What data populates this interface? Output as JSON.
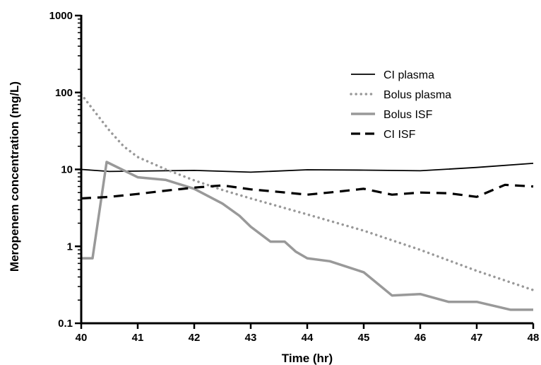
{
  "chart_data": {
    "type": "line",
    "title": "",
    "xlabel": "Time (hr)",
    "ylabel": "Meropenem concentration (mg/L)",
    "xlim": [
      40,
      48
    ],
    "ylim": [
      0.1,
      1000
    ],
    "yscale": "log",
    "x_ticks": [
      "40",
      "41",
      "42",
      "43",
      "44",
      "45",
      "46",
      "47",
      "48"
    ],
    "y_ticks": [
      "0.1",
      "1",
      "10",
      "100",
      "1000"
    ],
    "grid": false,
    "legend_position": "top-right",
    "series": [
      {
        "name": "CI plasma",
        "color": "#000000",
        "style": "solid-thin",
        "points": [
          [
            40,
            10.0
          ],
          [
            40.5,
            9.4
          ],
          [
            41,
            9.5
          ],
          [
            42,
            9.7
          ],
          [
            43,
            9.2
          ],
          [
            44,
            9.9
          ],
          [
            45,
            9.8
          ],
          [
            46,
            9.6
          ],
          [
            47,
            10.6
          ],
          [
            48,
            12.0
          ]
        ]
      },
      {
        "name": "Bolus plasma",
        "color": "#999999",
        "style": "dotted",
        "points": [
          [
            40,
            95
          ],
          [
            40.25,
            55
          ],
          [
            40.5,
            32
          ],
          [
            40.75,
            20
          ],
          [
            41,
            14.5
          ],
          [
            41.5,
            10.0
          ],
          [
            42,
            7.2
          ],
          [
            42.5,
            5.4
          ],
          [
            43,
            4.2
          ],
          [
            44,
            2.6
          ],
          [
            45,
            1.6
          ],
          [
            46,
            0.9
          ],
          [
            47,
            0.48
          ],
          [
            48,
            0.27
          ]
        ]
      },
      {
        "name": "Bolus ISF",
        "color": "#999999",
        "style": "solid-thick",
        "points": [
          [
            40,
            0.7
          ],
          [
            40.2,
            0.7
          ],
          [
            40.45,
            12.5
          ],
          [
            41,
            7.9
          ],
          [
            41.5,
            7.3
          ],
          [
            42,
            5.6
          ],
          [
            42.5,
            3.6
          ],
          [
            42.8,
            2.5
          ],
          [
            43,
            1.8
          ],
          [
            43.35,
            1.15
          ],
          [
            43.6,
            1.15
          ],
          [
            43.8,
            0.85
          ],
          [
            44,
            0.7
          ],
          [
            44.4,
            0.64
          ],
          [
            45,
            0.46
          ],
          [
            45.5,
            0.23
          ],
          [
            46,
            0.24
          ],
          [
            46.5,
            0.19
          ],
          [
            47,
            0.19
          ],
          [
            47.6,
            0.15
          ],
          [
            48,
            0.15
          ]
        ]
      },
      {
        "name": "CI ISF",
        "color": "#000000",
        "style": "dashed",
        "points": [
          [
            40,
            4.2
          ],
          [
            40.5,
            4.4
          ],
          [
            41,
            4.8
          ],
          [
            41.5,
            5.3
          ],
          [
            42,
            5.8
          ],
          [
            42.5,
            6.2
          ],
          [
            43,
            5.5
          ],
          [
            43.5,
            5.1
          ],
          [
            44,
            4.7
          ],
          [
            44.5,
            5.1
          ],
          [
            45,
            5.6
          ],
          [
            45.5,
            4.7
          ],
          [
            46,
            5.0
          ],
          [
            46.5,
            4.9
          ],
          [
            47,
            4.4
          ],
          [
            47.5,
            6.3
          ],
          [
            48,
            6.0
          ]
        ]
      }
    ]
  }
}
